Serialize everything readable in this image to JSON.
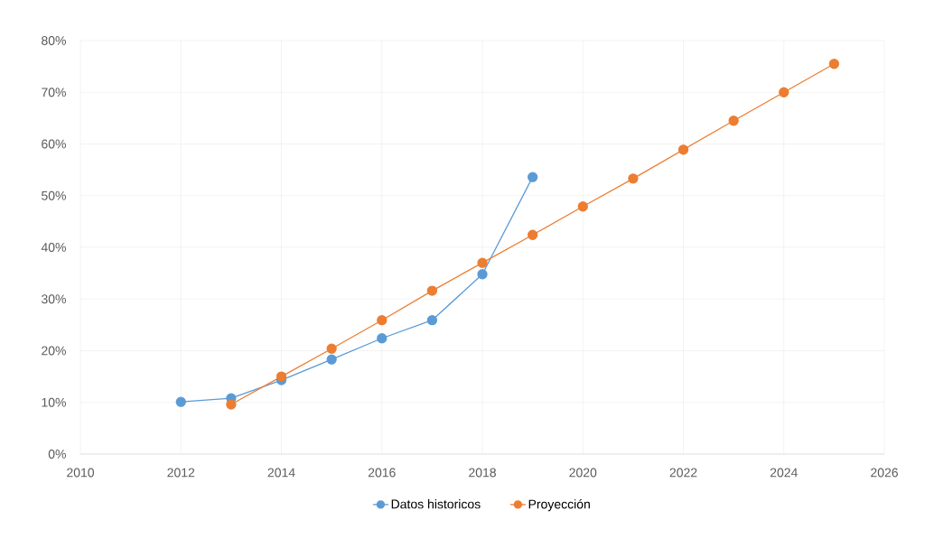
{
  "chart_data": {
    "type": "line",
    "series": [
      {
        "name": "Datos historicos",
        "color": "#5b9bd5",
        "x": [
          2012,
          2013,
          2014,
          2015,
          2016,
          2017,
          2018,
          2019
        ],
        "values": [
          10.1,
          10.8,
          14.3,
          18.3,
          22.4,
          25.9,
          34.8,
          53.6
        ]
      },
      {
        "name": "Proyección",
        "color": "#ed7d31",
        "x": [
          2013,
          2014,
          2015,
          2016,
          2017,
          2018,
          2019,
          2020,
          2021,
          2022,
          2023,
          2024,
          2025
        ],
        "values": [
          9.6,
          15.0,
          20.4,
          25.9,
          31.6,
          37.0,
          42.4,
          47.9,
          53.3,
          58.9,
          64.5,
          70.0,
          75.5
        ]
      }
    ],
    "xlim": [
      2010,
      2026
    ],
    "xticks": [
      2010,
      2012,
      2014,
      2016,
      2018,
      2020,
      2022,
      2024,
      2026
    ],
    "ylim": [
      0,
      80
    ],
    "yticks": [
      {
        "value": 0,
        "label": "0%"
      },
      {
        "value": 10,
        "label": "10%"
      },
      {
        "value": 20,
        "label": "20%"
      },
      {
        "value": 30,
        "label": "30%"
      },
      {
        "value": 40,
        "label": "40%"
      },
      {
        "value": 50,
        "label": "50%"
      },
      {
        "value": 60,
        "label": "60%"
      },
      {
        "value": 70,
        "label": "70%"
      },
      {
        "value": 80,
        "label": "80%"
      }
    ],
    "grid": true,
    "legend": "bottom",
    "marker": "circle",
    "line_style": "solid"
  }
}
